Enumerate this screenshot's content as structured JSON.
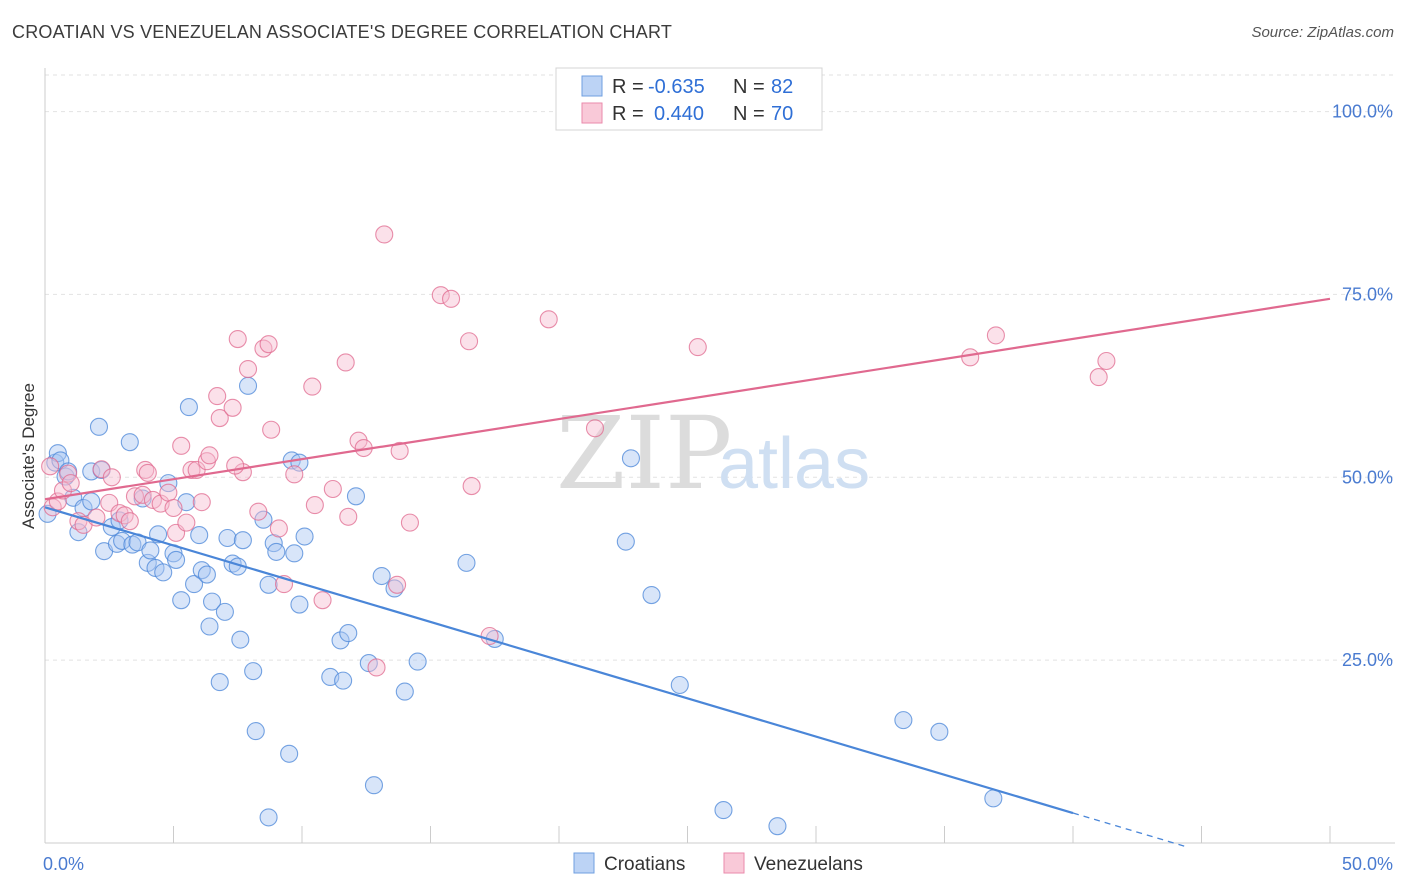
{
  "title": "CROATIAN VS VENEZUELAN ASSOCIATE'S DEGREE CORRELATION CHART",
  "source": "Source: ZipAtlas.com",
  "watermark": {
    "part1": "ZIP",
    "part2": "atlas"
  },
  "legend": {
    "rows": [
      {
        "r_label": "R =",
        "r_value": "-0.635",
        "n_label": "N =",
        "n_value": "82",
        "color": "#8db4ee"
      },
      {
        "r_label": "R =",
        "r_value": "0.440",
        "n_label": "N =",
        "n_value": "70",
        "color": "#f4a7c0"
      }
    ]
  },
  "bottom_legend": [
    {
      "label": "Croatians",
      "color": "#8db4ee"
    },
    {
      "label": "Venezuelans",
      "color": "#f4a7c0"
    }
  ],
  "chart_data": {
    "type": "scatter",
    "title": "CROATIAN VS VENEZUELAN ASSOCIATE'S DEGREE CORRELATION CHART",
    "xlabel": "",
    "ylabel": "Associate's Degree",
    "xlim": [
      0,
      50
    ],
    "ylim": [
      0,
      105
    ],
    "x_tick_labels": [
      "0.0%",
      "50.0%"
    ],
    "y_tick_labels": [
      "25.0%",
      "50.0%",
      "75.0%",
      "100.0%"
    ],
    "y_ticks": [
      25,
      50,
      75,
      100
    ],
    "grid": true,
    "legend_position": "top-center",
    "series": [
      {
        "name": "Croatians",
        "color": "#4a86d8",
        "fill": "#a9c6f2",
        "trend": {
          "x0": 0,
          "y0": 45.9,
          "x1": 40,
          "y1": 4.1,
          "dash_to_x": 44.5
        },
        "points": [
          [
            0.1,
            45.0
          ],
          [
            0.4,
            52.0
          ],
          [
            0.5,
            53.3
          ],
          [
            0.6,
            52.3
          ],
          [
            0.8,
            50.1
          ],
          [
            0.9,
            50.8
          ],
          [
            1.1,
            47.2
          ],
          [
            1.3,
            42.5
          ],
          [
            1.5,
            45.8
          ],
          [
            1.8,
            46.7
          ],
          [
            1.8,
            50.8
          ],
          [
            2.1,
            56.9
          ],
          [
            2.2,
            51.0
          ],
          [
            2.3,
            39.9
          ],
          [
            2.6,
            43.2
          ],
          [
            2.8,
            40.9
          ],
          [
            2.9,
            44.1
          ],
          [
            3.0,
            41.3
          ],
          [
            3.3,
            54.8
          ],
          [
            3.4,
            40.8
          ],
          [
            3.6,
            41.1
          ],
          [
            3.8,
            47.1
          ],
          [
            4.0,
            38.3
          ],
          [
            4.1,
            40.0
          ],
          [
            4.3,
            37.6
          ],
          [
            4.4,
            42.2
          ],
          [
            4.6,
            37.0
          ],
          [
            4.8,
            49.2
          ],
          [
            5.0,
            39.6
          ],
          [
            5.1,
            38.7
          ],
          [
            5.3,
            33.2
          ],
          [
            5.5,
            46.6
          ],
          [
            5.6,
            59.6
          ],
          [
            5.8,
            35.4
          ],
          [
            6.0,
            42.1
          ],
          [
            6.1,
            37.3
          ],
          [
            6.3,
            36.7
          ],
          [
            6.4,
            29.6
          ],
          [
            6.5,
            33.0
          ],
          [
            6.8,
            22.0
          ],
          [
            7.0,
            31.6
          ],
          [
            7.1,
            41.7
          ],
          [
            7.3,
            38.2
          ],
          [
            7.5,
            37.8
          ],
          [
            7.6,
            27.8
          ],
          [
            7.7,
            41.4
          ],
          [
            7.9,
            62.5
          ],
          [
            8.1,
            23.5
          ],
          [
            8.2,
            15.3
          ],
          [
            8.5,
            44.2
          ],
          [
            8.7,
            35.3
          ],
          [
            8.7,
            3.5
          ],
          [
            8.9,
            41.0
          ],
          [
            9.0,
            39.8
          ],
          [
            9.5,
            12.2
          ],
          [
            9.6,
            52.3
          ],
          [
            9.7,
            39.6
          ],
          [
            9.9,
            32.6
          ],
          [
            10.1,
            41.9
          ],
          [
            11.1,
            22.7
          ],
          [
            11.5,
            27.7
          ],
          [
            11.6,
            22.2
          ],
          [
            11.8,
            28.7
          ],
          [
            12.1,
            47.4
          ],
          [
            12.6,
            24.6
          ],
          [
            12.8,
            7.9
          ],
          [
            13.1,
            36.5
          ],
          [
            13.6,
            34.8
          ],
          [
            14.0,
            20.7
          ],
          [
            14.5,
            24.8
          ],
          [
            16.4,
            38.3
          ],
          [
            17.5,
            27.9
          ],
          [
            22.6,
            41.2
          ],
          [
            22.8,
            52.6
          ],
          [
            23.6,
            33.9
          ],
          [
            24.7,
            21.6
          ],
          [
            26.4,
            4.5
          ],
          [
            28.5,
            2.3
          ],
          [
            33.4,
            16.8
          ],
          [
            34.8,
            15.2
          ],
          [
            36.9,
            6.1
          ],
          [
            9.9,
            52.0
          ]
        ]
      },
      {
        "name": "Venezuelans",
        "color": "#e0698f",
        "fill": "#f7bcd0",
        "trend": {
          "x0": 0,
          "y0": 47.0,
          "x1": 50,
          "y1": 74.4
        },
        "points": [
          [
            0.2,
            51.5
          ],
          [
            0.3,
            45.9
          ],
          [
            0.5,
            46.7
          ],
          [
            0.7,
            48.2
          ],
          [
            0.9,
            50.5
          ],
          [
            1.0,
            49.2
          ],
          [
            1.3,
            44.0
          ],
          [
            1.5,
            43.5
          ],
          [
            2.0,
            44.5
          ],
          [
            2.2,
            51.1
          ],
          [
            2.5,
            46.5
          ],
          [
            2.6,
            50.0
          ],
          [
            2.9,
            45.1
          ],
          [
            3.1,
            44.8
          ],
          [
            3.3,
            44.0
          ],
          [
            3.5,
            47.4
          ],
          [
            3.8,
            47.6
          ],
          [
            3.9,
            51.0
          ],
          [
            4.0,
            50.6
          ],
          [
            4.2,
            46.9
          ],
          [
            4.5,
            46.4
          ],
          [
            4.8,
            47.9
          ],
          [
            5.0,
            45.8
          ],
          [
            5.1,
            42.4
          ],
          [
            5.3,
            54.3
          ],
          [
            5.5,
            43.8
          ],
          [
            5.7,
            51.0
          ],
          [
            5.9,
            51.0
          ],
          [
            6.1,
            46.6
          ],
          [
            6.3,
            52.2
          ],
          [
            6.4,
            53.0
          ],
          [
            6.7,
            61.1
          ],
          [
            6.8,
            58.1
          ],
          [
            7.3,
            59.5
          ],
          [
            7.5,
            68.9
          ],
          [
            7.7,
            50.7
          ],
          [
            7.9,
            64.8
          ],
          [
            8.3,
            45.3
          ],
          [
            8.5,
            67.6
          ],
          [
            8.7,
            68.2
          ],
          [
            8.8,
            56.5
          ],
          [
            9.1,
            43.0
          ],
          [
            9.3,
            35.4
          ],
          [
            9.7,
            50.4
          ],
          [
            10.4,
            62.4
          ],
          [
            10.5,
            46.2
          ],
          [
            10.8,
            33.2
          ],
          [
            11.2,
            48.4
          ],
          [
            11.7,
            65.7
          ],
          [
            11.8,
            44.6
          ],
          [
            12.2,
            55.0
          ],
          [
            12.4,
            54.0
          ],
          [
            12.9,
            24.0
          ],
          [
            13.2,
            83.2
          ],
          [
            13.7,
            35.3
          ],
          [
            13.8,
            53.6
          ],
          [
            14.2,
            43.8
          ],
          [
            15.4,
            74.9
          ],
          [
            15.8,
            74.4
          ],
          [
            16.5,
            68.6
          ],
          [
            16.6,
            48.8
          ],
          [
            17.3,
            28.3
          ],
          [
            19.6,
            71.6
          ],
          [
            21.4,
            56.7
          ],
          [
            25.4,
            67.8
          ],
          [
            36.0,
            66.4
          ],
          [
            37.0,
            69.4
          ],
          [
            41.0,
            63.7
          ],
          [
            41.3,
            65.9
          ],
          [
            7.4,
            51.6
          ]
        ]
      }
    ]
  }
}
